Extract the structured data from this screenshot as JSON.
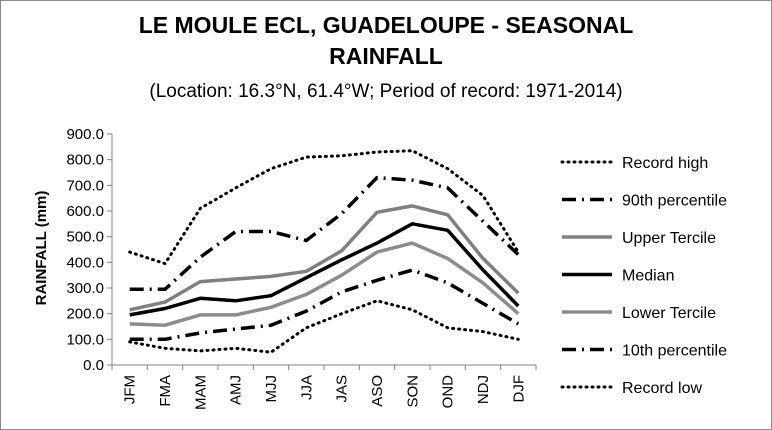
{
  "chart_data": {
    "type": "line",
    "title": "LE MOULE ECL, GUADELOUPE - SEASONAL RAINFALL",
    "title_lines": [
      "LE MOULE ECL, GUADELOUPE - SEASONAL",
      "RAINFALL"
    ],
    "subtitle": "(Location: 16.3°N, 61.4°W; Period of record: 1971-2014)",
    "xlabel": "",
    "ylabel": "RAINFALL (mm)",
    "ylim": [
      0,
      900
    ],
    "yticks": [
      "0.0",
      "100.0",
      "200.0",
      "300.0",
      "400.0",
      "500.0",
      "600.0",
      "700.0",
      "800.0",
      "900.0"
    ],
    "grid": false,
    "legend_position": "right",
    "categories": [
      "JFM",
      "FMA",
      "MAM",
      "AMJ",
      "MJJ",
      "JJA",
      "JAS",
      "ASO",
      "SON",
      "OND",
      "NDJ",
      "DJF"
    ],
    "series": [
      {
        "name": "Record high",
        "style": "dotted",
        "color": "#000000",
        "values": [
          440,
          395,
          610,
          690,
          765,
          810,
          815,
          830,
          835,
          765,
          660,
          440
        ]
      },
      {
        "name": "90th percentile",
        "style": "dash-dot",
        "color": "#000000",
        "values": [
          295,
          295,
          420,
          520,
          520,
          485,
          590,
          730,
          720,
          690,
          560,
          430
        ]
      },
      {
        "name": "Upper Tercile",
        "style": "solid",
        "color": "#808080",
        "values": [
          215,
          245,
          325,
          335,
          345,
          365,
          445,
          595,
          620,
          585,
          415,
          280
        ]
      },
      {
        "name": "Median",
        "style": "solid",
        "color": "#000000",
        "values": [
          195,
          220,
          260,
          250,
          270,
          340,
          410,
          475,
          550,
          525,
          370,
          230
        ]
      },
      {
        "name": "Lower Tercile",
        "style": "solid",
        "color": "#8c8c8c",
        "values": [
          160,
          155,
          195,
          195,
          225,
          275,
          350,
          440,
          475,
          415,
          320,
          200
        ]
      },
      {
        "name": "10th percentile",
        "style": "dash-dot",
        "color": "#000000",
        "values": [
          100,
          100,
          125,
          140,
          155,
          210,
          285,
          330,
          370,
          320,
          240,
          160
        ]
      },
      {
        "name": "Record low",
        "style": "dotted",
        "color": "#000000",
        "values": [
          90,
          65,
          55,
          65,
          50,
          145,
          200,
          250,
          215,
          145,
          130,
          100
        ]
      }
    ]
  }
}
